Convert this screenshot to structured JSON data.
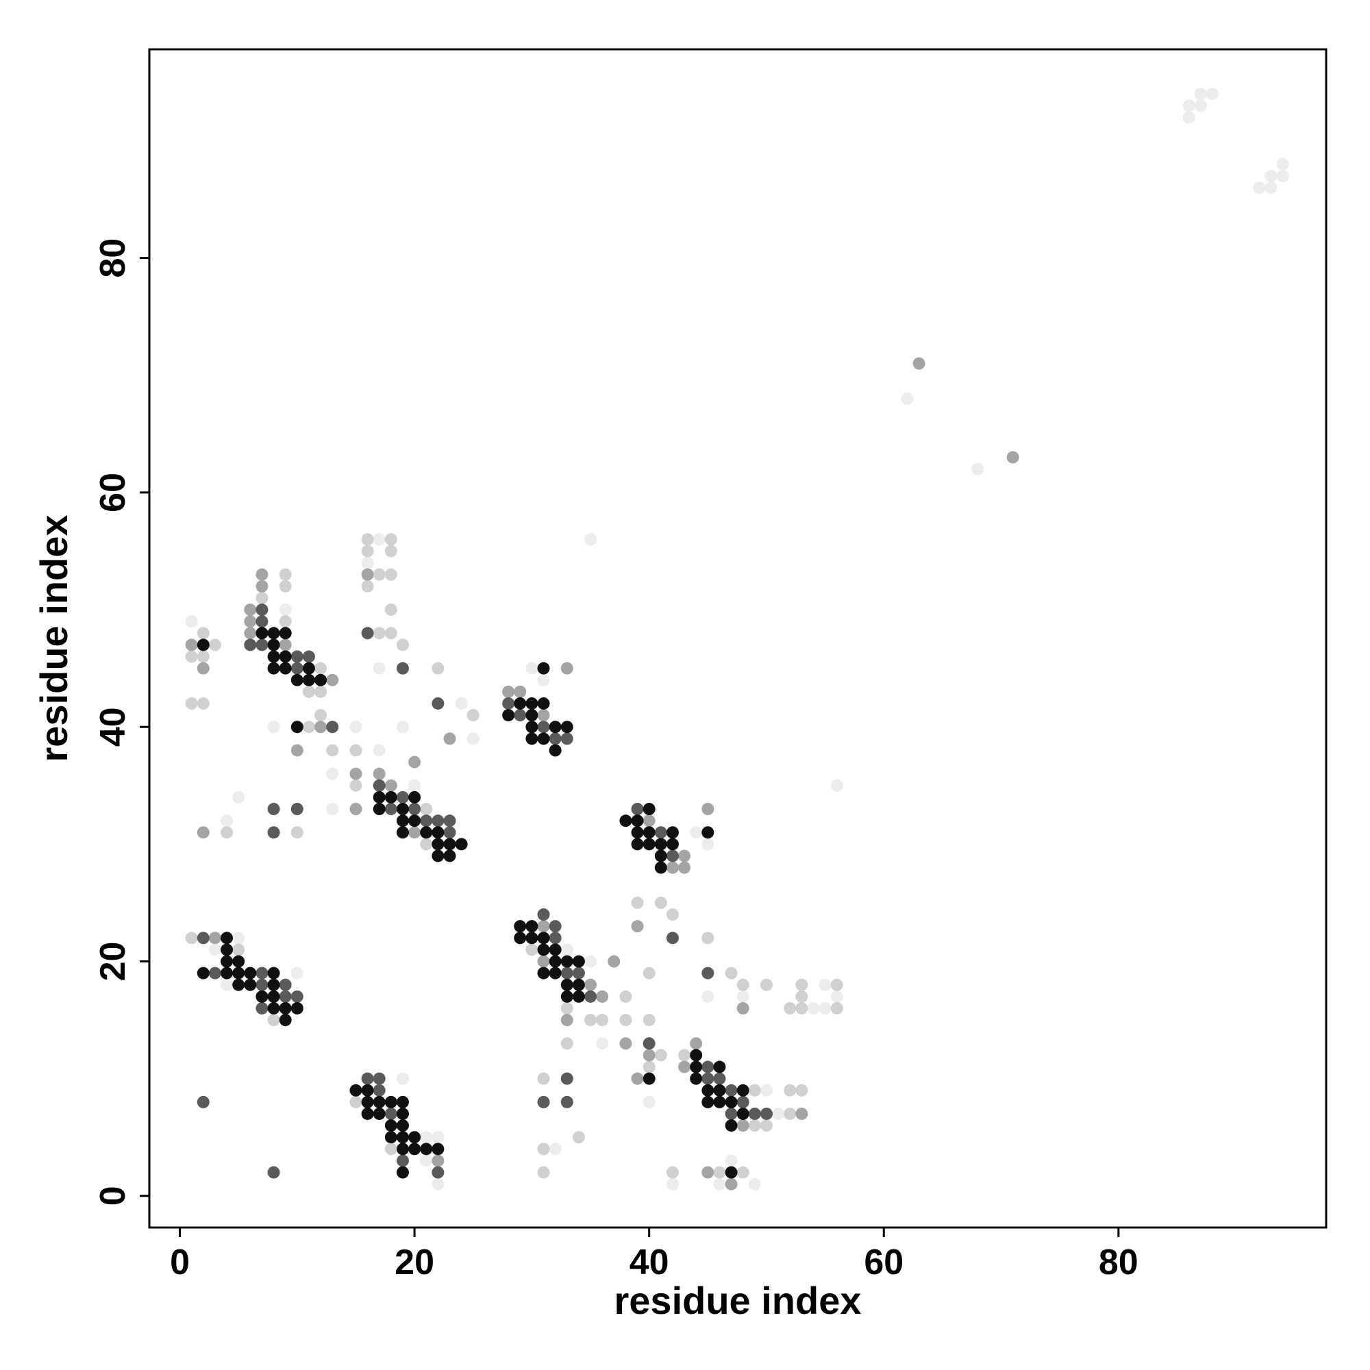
{
  "chart_data": {
    "type": "scatter",
    "xlabel": "residue index",
    "ylabel": "residue index",
    "xlim": [
      -2.6,
      97.7
    ],
    "ylim": [
      -2.7,
      97.8
    ],
    "xticks": [
      0,
      20,
      40,
      60,
      80
    ],
    "yticks": [
      0,
      20,
      40,
      60,
      80
    ],
    "series": [
      {
        "color": "#ececec",
        "x": [
          86,
          86,
          87,
          87,
          88,
          92,
          93,
          93,
          94,
          94,
          62,
          68,
          35,
          56,
          1,
          9,
          8,
          13,
          13,
          5,
          4,
          17,
          16,
          17,
          24,
          25,
          19,
          15,
          17,
          20,
          30,
          31,
          44,
          45,
          5,
          3,
          10,
          4,
          19,
          21,
          22,
          21,
          22,
          33,
          35,
          36,
          45,
          48,
          40,
          50,
          51,
          54,
          55,
          55,
          56,
          32,
          42,
          46,
          49,
          47
        ],
        "y": [
          92,
          93,
          93,
          94,
          94,
          86,
          86,
          87,
          87,
          88,
          68,
          62,
          56,
          35,
          49,
          50,
          40,
          36,
          33,
          34,
          32,
          56,
          54,
          45,
          42,
          39,
          40,
          40,
          38,
          35,
          45,
          44,
          31,
          30,
          22,
          21,
          19,
          18,
          10,
          5,
          5,
          3,
          1,
          21,
          20,
          13,
          17,
          17,
          8,
          9,
          7,
          16,
          16,
          18,
          17,
          4,
          1,
          1,
          1,
          3
        ]
      },
      {
        "color": "#d0d0d0",
        "x": [
          3,
          1,
          2,
          2,
          1,
          2,
          7,
          12,
          11,
          12,
          9,
          9,
          9,
          11,
          12,
          13,
          10,
          4,
          16,
          18,
          16,
          18,
          17,
          18,
          16,
          18,
          17,
          18,
          19,
          22,
          25,
          15,
          15,
          21,
          21,
          1,
          5,
          8,
          15,
          18,
          30,
          33,
          35,
          36,
          38,
          38,
          33,
          39,
          41,
          42,
          45,
          40,
          47,
          48,
          50,
          40,
          41,
          40,
          43,
          49,
          49,
          50,
          52,
          53,
          53,
          53,
          56,
          56,
          52,
          53,
          52,
          31,
          34,
          31,
          31,
          42,
          46,
          48
        ],
        "y": [
          47,
          46,
          46,
          48,
          42,
          42,
          51,
          45,
          43,
          43,
          53,
          52,
          49,
          40,
          41,
          38,
          31,
          31,
          56,
          56,
          55,
          55,
          53,
          53,
          52,
          50,
          48,
          48,
          47,
          45,
          41,
          38,
          35,
          33,
          30,
          22,
          21,
          15,
          8,
          4,
          21,
          16,
          15,
          15,
          17,
          15,
          13,
          25,
          25,
          24,
          22,
          19,
          19,
          18,
          18,
          15,
          12,
          11,
          12,
          9,
          6,
          6,
          16,
          16,
          17,
          18,
          18,
          16,
          9,
          9,
          7,
          10,
          5,
          4,
          2,
          2,
          2,
          2
        ]
      },
      {
        "color": "#a4a4a4",
        "x": [
          63,
          71,
          1,
          2,
          7,
          7,
          6,
          6,
          6,
          9,
          13,
          10,
          12,
          2,
          16,
          23,
          20,
          15,
          17,
          18,
          15,
          20,
          28,
          29,
          31,
          33,
          40,
          43,
          42,
          43,
          45,
          3,
          22,
          31,
          31,
          35,
          36,
          33,
          37,
          38,
          39,
          48,
          40,
          39,
          43,
          44,
          48,
          53,
          45,
          47
        ],
        "y": [
          71,
          63,
          47,
          45,
          53,
          52,
          50,
          49,
          48,
          47,
          44,
          38,
          40,
          31,
          53,
          39,
          37,
          36,
          36,
          35,
          33,
          31,
          43,
          43,
          41,
          45,
          32,
          29,
          28,
          28,
          33,
          22,
          3,
          23,
          20,
          18,
          17,
          15,
          20,
          13,
          23,
          16,
          12,
          10,
          11,
          13,
          6,
          7,
          2,
          1
        ]
      },
      {
        "color": "#5a5a5a",
        "x": [
          7,
          7,
          6,
          7,
          10,
          11,
          10,
          13,
          8,
          10,
          8,
          16,
          19,
          22,
          17,
          19,
          18,
          20,
          21,
          22,
          23,
          23,
          28,
          29,
          31,
          32,
          33,
          39,
          41,
          42,
          2,
          3,
          7,
          7,
          9,
          9,
          10,
          7,
          2,
          8,
          17,
          16,
          17,
          18,
          19,
          22,
          31,
          32,
          32,
          33,
          34,
          35,
          42,
          45,
          40,
          45,
          45,
          46,
          47,
          48,
          47,
          49,
          50,
          33,
          31,
          33
        ],
        "y": [
          50,
          49,
          47,
          47,
          46,
          46,
          45,
          40,
          33,
          33,
          31,
          48,
          45,
          42,
          35,
          34,
          33,
          33,
          32,
          32,
          32,
          31,
          42,
          41,
          40,
          39,
          39,
          33,
          31,
          29,
          22,
          19,
          19,
          18,
          18,
          17,
          17,
          16,
          8,
          2,
          9,
          10,
          10,
          7,
          3,
          2,
          24,
          23,
          22,
          19,
          19,
          17,
          22,
          19,
          13,
          11,
          10,
          10,
          9,
          8,
          7,
          7,
          7,
          10,
          8,
          8
        ]
      },
      {
        "color": "#111111",
        "x": [
          2,
          7,
          8,
          9,
          8,
          8,
          9,
          8,
          9,
          11,
          10,
          11,
          12,
          10,
          17,
          18,
          20,
          17,
          19,
          19,
          20,
          19,
          21,
          22,
          22,
          23,
          24,
          22,
          23,
          31,
          29,
          30,
          31,
          28,
          30,
          30,
          32,
          33,
          30,
          31,
          32,
          40,
          38,
          39,
          39,
          40,
          42,
          39,
          40,
          41,
          42,
          41,
          41,
          45,
          4,
          4,
          2,
          4,
          5,
          6,
          8,
          4,
          5,
          5,
          6,
          8,
          7,
          8,
          8,
          9,
          10,
          9,
          15,
          16,
          16,
          17,
          18,
          19,
          16,
          17,
          19,
          18,
          19,
          18,
          19,
          20,
          19,
          20,
          21,
          22,
          19,
          29,
          30,
          29,
          30,
          31,
          31,
          32,
          32,
          33,
          34,
          31,
          32,
          33,
          34,
          33,
          34,
          40,
          44,
          44,
          46,
          44,
          45,
          46,
          48,
          45,
          46,
          47,
          48,
          47,
          47
        ],
        "y": [
          47,
          48,
          48,
          48,
          47,
          46,
          46,
          45,
          45,
          45,
          44,
          44,
          44,
          40,
          34,
          34,
          34,
          33,
          33,
          32,
          32,
          31,
          31,
          31,
          30,
          30,
          30,
          29,
          29,
          45,
          42,
          42,
          42,
          41,
          41,
          40,
          40,
          40,
          39,
          39,
          38,
          33,
          32,
          32,
          31,
          31,
          31,
          30,
          30,
          30,
          30,
          29,
          28,
          31,
          22,
          21,
          19,
          19,
          19,
          19,
          19,
          20,
          20,
          18,
          18,
          18,
          17,
          17,
          16,
          16,
          16,
          15,
          9,
          9,
          8,
          8,
          8,
          8,
          7,
          7,
          7,
          6,
          6,
          5,
          5,
          5,
          4,
          4,
          4,
          4,
          2,
          23,
          23,
          22,
          22,
          22,
          21,
          21,
          20,
          20,
          20,
          19,
          19,
          18,
          18,
          17,
          17,
          10,
          12,
          11,
          11,
          10,
          9,
          9,
          9,
          8,
          8,
          8,
          7,
          6,
          2
        ]
      }
    ]
  }
}
